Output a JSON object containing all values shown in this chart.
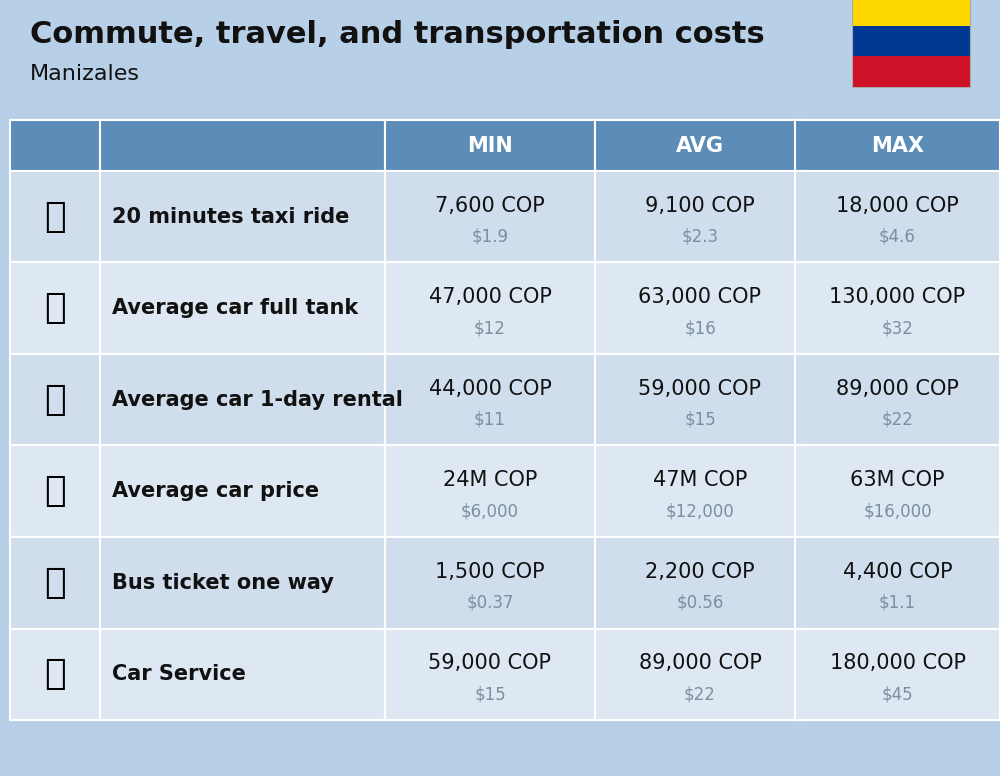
{
  "title": "Commute, travel, and transportation costs",
  "subtitle": "Manizales",
  "bg_color": "#b8cfe8",
  "header_bg": "#5b8db8",
  "header_text_color": "#ffffff",
  "row_bg_odd": "#cfdded",
  "row_bg_even": "#dde8f3",
  "col_headers": [
    "",
    "",
    "MIN",
    "AVG",
    "MAX"
  ],
  "rows": [
    {
      "label": "20 minutes taxi ride",
      "min_cop": "7,600 COP",
      "min_usd": "$1.9",
      "avg_cop": "9,100 COP",
      "avg_usd": "$2.3",
      "max_cop": "18,000 COP",
      "max_usd": "$4.6"
    },
    {
      "label": "Average car full tank",
      "min_cop": "47,000 COP",
      "min_usd": "$12",
      "avg_cop": "63,000 COP",
      "avg_usd": "$16",
      "max_cop": "130,000 COP",
      "max_usd": "$32"
    },
    {
      "label": "Average car 1-day rental",
      "min_cop": "44,000 COP",
      "min_usd": "$11",
      "avg_cop": "59,000 COP",
      "avg_usd": "$15",
      "max_cop": "89,000 COP",
      "max_usd": "$22"
    },
    {
      "label": "Average car price",
      "min_cop": "24M COP",
      "min_usd": "$6,000",
      "avg_cop": "47M COP",
      "avg_usd": "$12,000",
      "max_cop": "63M COP",
      "max_usd": "$16,000"
    },
    {
      "label": "Bus ticket one way",
      "min_cop": "1,500 COP",
      "min_usd": "$0.37",
      "avg_cop": "2,200 COP",
      "avg_usd": "$0.56",
      "max_cop": "4,400 COP",
      "max_usd": "$1.1"
    },
    {
      "label": "Car Service",
      "min_cop": "59,000 COP",
      "min_usd": "$15",
      "avg_cop": "89,000 COP",
      "avg_usd": "$22",
      "max_cop": "180,000 COP",
      "max_usd": "$45"
    }
  ],
  "flag_colors": [
    "#FFD700",
    "#003893",
    "#CE1126"
  ],
  "cop_fontsize": 15,
  "usd_fontsize": 12,
  "label_fontsize": 15,
  "header_fontsize": 15
}
